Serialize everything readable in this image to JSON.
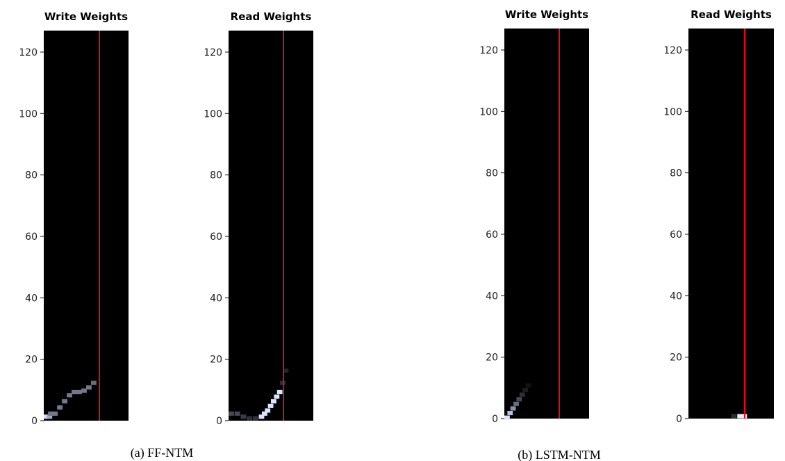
{
  "figure": {
    "captions": [
      "(a) FF-NTM",
      "(b) LSTM-NTM"
    ]
  },
  "chart_data": [
    {
      "type": "heatmap",
      "group": "(a) FF-NTM",
      "title": "Write Weights",
      "ylim": [
        0,
        127
      ],
      "yticks": [
        0,
        20,
        40,
        60,
        80,
        100,
        120
      ],
      "colormap": "bone",
      "marker_line_color": "#ff0000",
      "trace": [
        [
          0,
          1.0,
          0.9
        ],
        [
          0.5,
          1.0,
          0.7
        ],
        [
          0.7,
          2.0,
          0.5
        ],
        [
          1.4,
          2.0,
          0.5
        ],
        [
          2.2,
          4.0,
          0.5
        ],
        [
          3.0,
          6.0,
          0.5
        ],
        [
          3.8,
          8.0,
          0.5
        ],
        [
          4.6,
          9.0,
          0.5
        ],
        [
          5.4,
          9.0,
          0.5
        ],
        [
          6.2,
          9.5,
          0.5
        ],
        [
          7.0,
          10.5,
          0.5
        ],
        [
          7.8,
          12.0,
          0.45
        ]
      ]
    },
    {
      "type": "heatmap",
      "group": "(a) FF-NTM",
      "title": "Read Weights",
      "ylim": [
        0,
        127
      ],
      "yticks": [
        0,
        20,
        40,
        60,
        80,
        100,
        120
      ],
      "colormap": "bone",
      "marker_line_color": "#ff0000",
      "trace": [
        [
          0,
          2.0,
          0.3
        ],
        [
          1.0,
          2.0,
          0.3
        ],
        [
          2.0,
          1.0,
          0.25
        ],
        [
          3.0,
          0.5,
          0.2
        ],
        [
          4.0,
          0.5,
          0.2
        ],
        [
          5.0,
          1.0,
          0.95
        ],
        [
          5.5,
          2.0,
          0.95
        ],
        [
          6.0,
          3.0,
          0.95
        ],
        [
          6.5,
          4.5,
          0.95
        ],
        [
          7.0,
          6.0,
          0.95
        ],
        [
          7.5,
          7.5,
          0.95
        ],
        [
          8.0,
          9.0,
          0.95
        ],
        [
          8.5,
          12.0,
          0.2
        ],
        [
          9.0,
          16.0,
          0.15
        ]
      ]
    },
    {
      "type": "heatmap",
      "group": "(b) LSTM-NTM",
      "title": "Write Weights",
      "ylim": [
        0,
        127
      ],
      "yticks": [
        0,
        20,
        40,
        60,
        80,
        100,
        120
      ],
      "colormap": "bone",
      "marker_line_color": "#ff0000",
      "trace": [
        [
          0,
          0.0,
          0.95
        ],
        [
          0.5,
          1.5,
          0.8
        ],
        [
          1.0,
          3.0,
          0.6
        ],
        [
          1.5,
          4.5,
          0.45
        ],
        [
          2.0,
          6.0,
          0.3
        ],
        [
          2.5,
          7.5,
          0.2
        ],
        [
          3.0,
          9.0,
          0.12
        ],
        [
          3.5,
          10.5,
          0.08
        ]
      ]
    },
    {
      "type": "heatmap",
      "group": "(b) LSTM-NTM",
      "title": "Read Weights",
      "ylim": [
        0,
        127
      ],
      "yticks": [
        0,
        20,
        40,
        60,
        80,
        100,
        120
      ],
      "colormap": "bone",
      "marker_line_color": "#ff0000",
      "trace": [
        [
          7.0,
          0.5,
          0.2
        ],
        [
          8.0,
          0.5,
          0.98
        ],
        [
          8.7,
          0.5,
          0.98
        ]
      ]
    }
  ]
}
